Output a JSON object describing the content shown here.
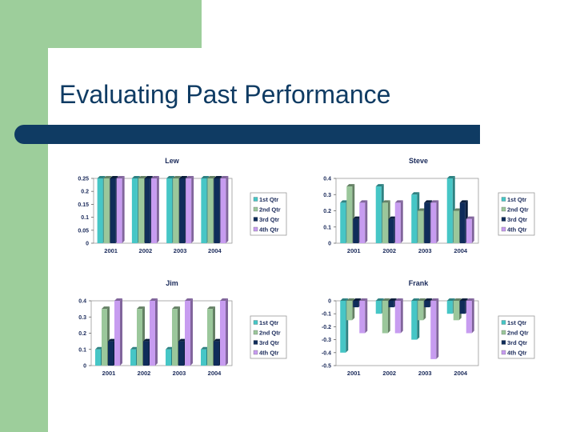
{
  "slide": {
    "title": "Evaluating Past Performance"
  },
  "colors": {
    "green": "#9dce9b",
    "navy": "#0f3b63"
  },
  "chart_data": [
    {
      "type": "bar",
      "title": "Lew",
      "categories": [
        "2001",
        "2002",
        "2003",
        "2004"
      ],
      "ylim": [
        0,
        0.25
      ],
      "yticks": [
        0,
        0.05,
        0.1,
        0.15,
        0.2,
        0.25
      ],
      "ytick_labels": [
        "0",
        "0.05",
        "0.1",
        "0.15",
        "0.2",
        "0.25"
      ],
      "legend_position": "right",
      "series": [
        {
          "name": "1st Qtr",
          "color": "#46c6c6",
          "values": [
            0.25,
            0.25,
            0.25,
            0.25
          ]
        },
        {
          "name": "2nd Qtr",
          "color": "#9bc79b",
          "values": [
            0.25,
            0.25,
            0.25,
            0.25
          ]
        },
        {
          "name": "3rd Qtr",
          "color": "#0f2c5a",
          "values": [
            0.25,
            0.25,
            0.25,
            0.25
          ]
        },
        {
          "name": "4th Qtr",
          "color": "#c79cf0",
          "values": [
            0.25,
            0.25,
            0.25,
            0.25
          ]
        }
      ]
    },
    {
      "type": "bar",
      "title": "Steve",
      "categories": [
        "2001",
        "2002",
        "2003",
        "2004"
      ],
      "ylim": [
        0,
        0.4
      ],
      "yticks": [
        0,
        0.1,
        0.2,
        0.3,
        0.4
      ],
      "ytick_labels": [
        "0",
        "0.1",
        "0.2",
        "0.3",
        "0.4"
      ],
      "legend_position": "right",
      "series": [
        {
          "name": "1st Qtr",
          "color": "#46c6c6",
          "values": [
            0.25,
            0.35,
            0.3,
            0.4
          ]
        },
        {
          "name": "2nd Qtr",
          "color": "#9bc79b",
          "values": [
            0.35,
            0.25,
            0.2,
            0.2
          ]
        },
        {
          "name": "3rd Qtr",
          "color": "#0f2c5a",
          "values": [
            0.15,
            0.15,
            0.25,
            0.25
          ]
        },
        {
          "name": "4th Qtr",
          "color": "#c79cf0",
          "values": [
            0.25,
            0.25,
            0.25,
            0.15
          ]
        }
      ]
    },
    {
      "type": "bar",
      "title": "Jim",
      "categories": [
        "2001",
        "2002",
        "2003",
        "2004"
      ],
      "ylim": [
        0,
        0.4
      ],
      "yticks": [
        0,
        0.1,
        0.2,
        0.3,
        0.4
      ],
      "ytick_labels": [
        "0",
        "0.1",
        "0.2",
        "0.3",
        "0.4"
      ],
      "legend_position": "right",
      "series": [
        {
          "name": "1st Qtr",
          "color": "#46c6c6",
          "values": [
            0.1,
            0.1,
            0.1,
            0.1
          ]
        },
        {
          "name": "2nd Qtr",
          "color": "#9bc79b",
          "values": [
            0.35,
            0.35,
            0.35,
            0.35
          ]
        },
        {
          "name": "3rd Qtr",
          "color": "#0f2c5a",
          "values": [
            0.15,
            0.15,
            0.15,
            0.15
          ]
        },
        {
          "name": "4th Qtr",
          "color": "#c79cf0",
          "values": [
            0.4,
            0.4,
            0.4,
            0.4
          ]
        }
      ]
    },
    {
      "type": "bar",
      "title": "Frank",
      "categories": [
        "2001",
        "2002",
        "2003",
        "2004"
      ],
      "ylim": [
        -0.5,
        0
      ],
      "yticks": [
        -0.5,
        -0.4,
        -0.3,
        -0.2,
        -0.1,
        0
      ],
      "ytick_labels": [
        "-0.5",
        "-0.4",
        "-0.3",
        "-0.2",
        "-0.1",
        "0"
      ],
      "legend_position": "right",
      "series": [
        {
          "name": "1st Qtr",
          "color": "#46c6c6",
          "values": [
            -0.4,
            -0.1,
            -0.3,
            -0.1
          ]
        },
        {
          "name": "2nd Qtr",
          "color": "#9bc79b",
          "values": [
            -0.15,
            -0.25,
            -0.15,
            -0.15
          ]
        },
        {
          "name": "3rd Qtr",
          "color": "#0f2c5a",
          "values": [
            -0.05,
            -0.05,
            -0.05,
            -0.1
          ]
        },
        {
          "name": "4th Qtr",
          "color": "#c79cf0",
          "values": [
            -0.25,
            -0.25,
            -0.45,
            -0.25
          ]
        }
      ]
    }
  ]
}
